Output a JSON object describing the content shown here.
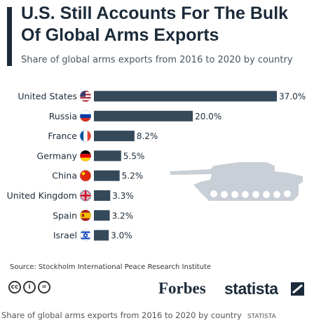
{
  "header": {
    "title": "U.S. Still Accounts For The Bulk Of Global Arms Exports",
    "subtitle": "Share of global arms exports from 2016 to 2020 by country"
  },
  "chart_data": {
    "type": "bar",
    "orientation": "horizontal",
    "categories": [
      "United States",
      "Russia",
      "France",
      "Germany",
      "China",
      "United Kingdom",
      "Spain",
      "Israel"
    ],
    "values": [
      37.0,
      20.0,
      8.2,
      5.5,
      5.2,
      3.3,
      3.2,
      3.0
    ],
    "value_labels": [
      "37.0%",
      "20.0%",
      "8.2%",
      "5.5%",
      "5.2%",
      "3.3%",
      "3.2%",
      "3.0%"
    ],
    "title": "U.S. Still Accounts For The Bulk Of Global Arms Exports",
    "subtitle": "Share of global arms exports from 2016 to 2020 by country",
    "xlim": [
      0,
      37
    ],
    "grid": false,
    "bar_color": "#34495a"
  },
  "flags": [
    "us-flag-icon",
    "russia-flag-icon",
    "france-flag-icon",
    "germany-flag-icon",
    "china-flag-icon",
    "uk-flag-icon",
    "spain-flag-icon",
    "israel-flag-icon"
  ],
  "footer": {
    "source": "Source: Stockholm International Peace Research Institute",
    "cc_labels": [
      "cc",
      "i",
      "="
    ],
    "forbes": "Forbes",
    "statista": "statista"
  },
  "caption": {
    "text": "Share of global arms exports from 2016 to 2020 by country",
    "source": "STATISTA"
  },
  "colors": {
    "dark": "#1c2b3a",
    "bar": "#34495a",
    "tank": "#c9cfd6"
  }
}
